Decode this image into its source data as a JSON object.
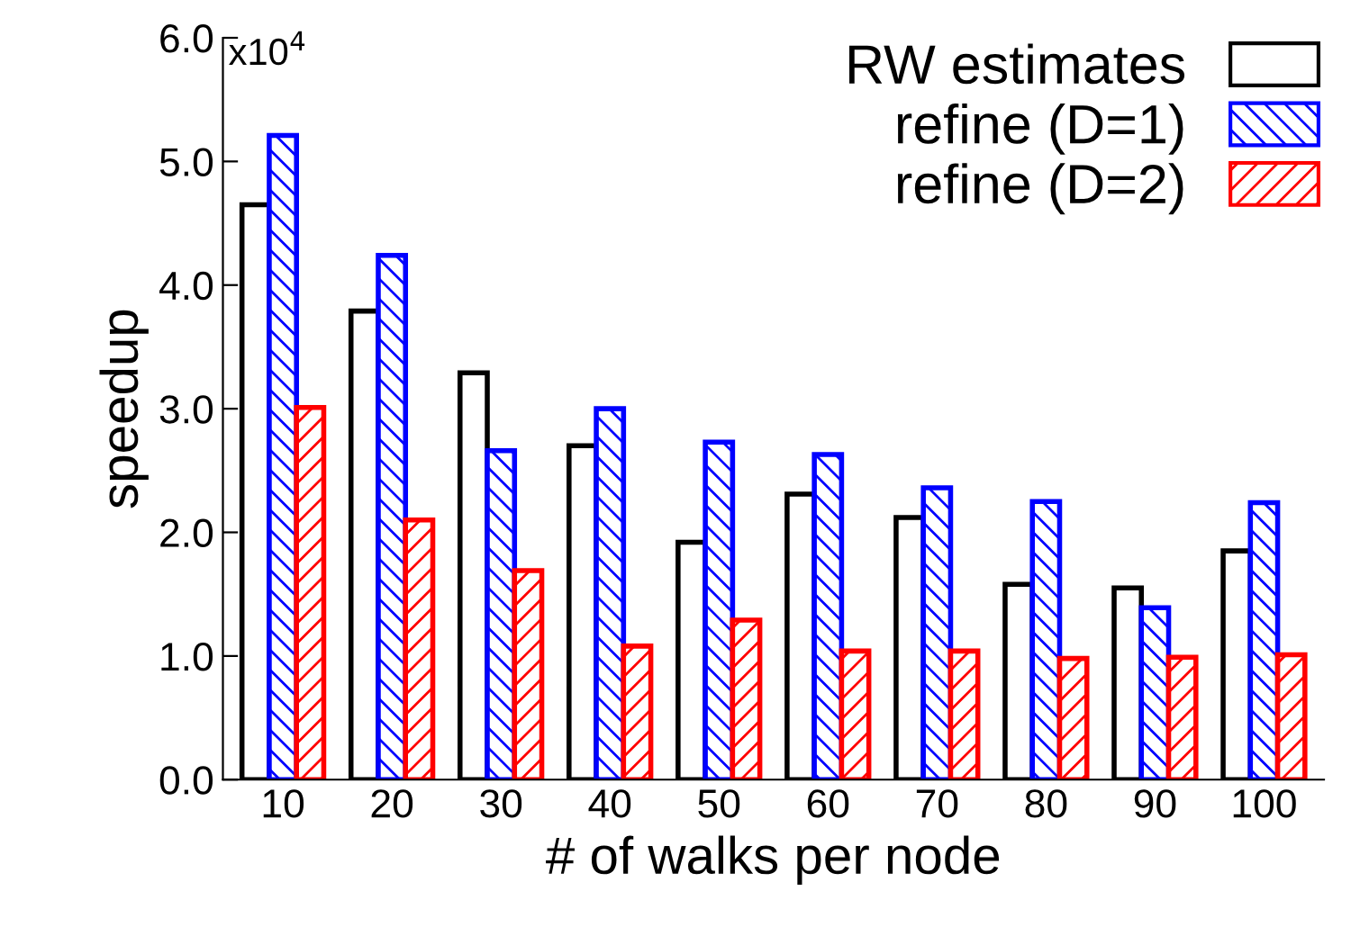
{
  "chart_data": {
    "type": "bar",
    "xlabel": "# of walks per node",
    "ylabel": "speedup",
    "categories": [
      "10",
      "20",
      "30",
      "40",
      "50",
      "60",
      "70",
      "80",
      "90",
      "100"
    ],
    "series": [
      {
        "name": "RW estimates",
        "color": "#000000",
        "values": [
          4.65,
          3.79,
          3.29,
          2.7,
          1.92,
          2.31,
          2.12,
          1.58,
          1.55,
          1.85
        ]
      },
      {
        "name": "refine (D=1)",
        "color": "#0000ff",
        "values": [
          5.21,
          4.24,
          2.66,
          3.0,
          2.73,
          2.63,
          2.36,
          2.25,
          1.39,
          2.24
        ]
      },
      {
        "name": "refine (D=2)",
        "color": "#ff0000",
        "values": [
          3.01,
          2.1,
          1.69,
          1.08,
          1.29,
          1.04,
          1.04,
          0.98,
          0.99,
          1.01
        ]
      }
    ],
    "ylim": [
      0,
      6
    ],
    "yticks": [
      {
        "value": 0,
        "label": "0.0"
      },
      {
        "value": 1,
        "label": "1.0"
      },
      {
        "value": 2,
        "label": "2.0"
      },
      {
        "value": 3,
        "label": "3.0"
      },
      {
        "value": 4,
        "label": "4.0"
      },
      {
        "value": 5,
        "label": "5.0"
      },
      {
        "value": 6,
        "label": "6.0"
      }
    ],
    "annotations": [
      "x10$^{4}$"
    ],
    "legend": "top right",
    "grid": false
  }
}
